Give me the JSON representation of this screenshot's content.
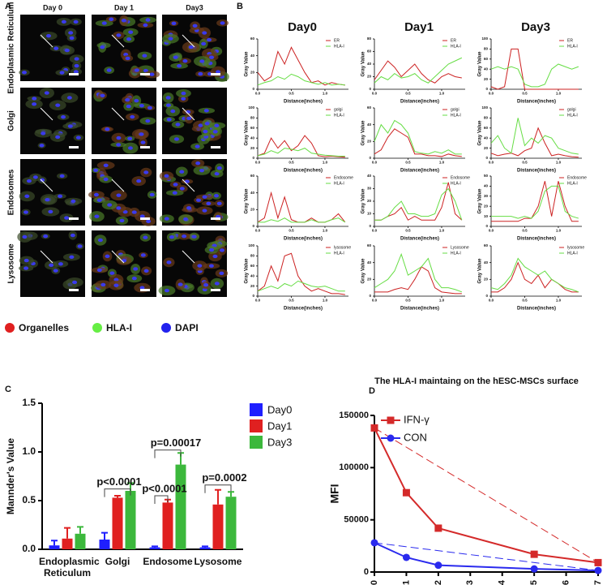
{
  "panel_labels": [
    "A",
    "B",
    "C",
    "D"
  ],
  "panel_a": {
    "columns": [
      "Day 0",
      "Day 1",
      "Day3"
    ],
    "rows": [
      "Endoplasmic Reticulum",
      "Golgi",
      "Endosomes",
      "Lysosome"
    ],
    "legend": [
      {
        "name": "Organelles",
        "color": "#e02020"
      },
      {
        "name": "HLA-I",
        "color": "#66ee44"
      },
      {
        "name": "DAPI",
        "color": "#2222ee"
      }
    ]
  },
  "panel_b": {
    "columns": [
      "Day0",
      "Day1",
      "Day3"
    ]
  },
  "chart_data": [
    {
      "type": "bar",
      "ylabel": "Mannder's Value",
      "categories": [
        "Endoplasmic Reticulum",
        "Golgi",
        "Endosome",
        "Lysosome"
      ],
      "ylim": [
        0,
        1.5
      ],
      "yticks": [
        {
          "value": 0,
          "label": "0.0"
        },
        {
          "value": 0.5,
          "label": "0.5"
        },
        {
          "value": 1,
          "label": "1.0"
        },
        {
          "value": 1.5,
          "label": "1.5"
        }
      ],
      "series": [
        {
          "name": "Day0",
          "color": "#1f1fff",
          "values": [
            0.04,
            0.1,
            0.02,
            0.02
          ],
          "errors": [
            0.05,
            0.07,
            0.01,
            0.01
          ]
        },
        {
          "name": "Day1",
          "color": "#e02020",
          "values": [
            0.11,
            0.53,
            0.48,
            0.46
          ],
          "errors": [
            0.11,
            0.02,
            0.03,
            0.15
          ]
        },
        {
          "name": "Day3",
          "color": "#3cb83c",
          "values": [
            0.16,
            0.6,
            0.87,
            0.54
          ],
          "errors": [
            0.07,
            0.08,
            0.12,
            0.05
          ]
        }
      ],
      "annotations": [
        "p<0.0001",
        "p<0.0001",
        "p=0.00017",
        "p=0.0002"
      ]
    },
    {
      "type": "line",
      "title": "The HLA-I maintaing on the hESC-MSCs surface",
      "ylabel": "MFI",
      "xlim": [
        0,
        7
      ],
      "xticks": [
        0,
        1,
        2,
        3,
        4,
        5,
        6,
        7
      ],
      "ylim": [
        0,
        150000
      ],
      "yticks": [
        0,
        50000,
        100000,
        150000
      ],
      "x": [
        0,
        1,
        2,
        5,
        7
      ],
      "series": [
        {
          "name": "IFN-γ",
          "color": "#d42a2a",
          "marker": "square",
          "values": [
            138000,
            76000,
            42000,
            17000,
            9000
          ]
        },
        {
          "name": "CON",
          "color": "#2a2aee",
          "marker": "circle",
          "values": [
            28000,
            14000,
            6500,
            3000,
            1500
          ]
        }
      ]
    },
    {
      "type": "line",
      "ylabel": "Gray Value",
      "xlabel": "Distance(inches)",
      "x": [
        0,
        0.1,
        0.2,
        0.3,
        0.4,
        0.5,
        0.6,
        0.7,
        0.8,
        0.9,
        1,
        1.1,
        1.2,
        1.3
      ],
      "xlim": [
        0,
        1.35
      ],
      "xticks": [
        {
          "value": 0,
          "label": "0.0"
        },
        {
          "value": 0.5,
          "label": "0.5"
        },
        {
          "value": 1,
          "label": "1.0"
        }
      ],
      "ylim": [
        0,
        60
      ],
      "yticks": [
        0,
        20,
        40,
        60
      ],
      "series": [
        {
          "name": "ER",
          "color": "#cc2222",
          "values": [
            20,
            10,
            15,
            45,
            30,
            50,
            35,
            20,
            8,
            10,
            5,
            8,
            6,
            5
          ]
        },
        {
          "name": "HLA-I",
          "color": "#66dd44",
          "values": [
            5,
            8,
            10,
            15,
            12,
            18,
            15,
            10,
            8,
            6,
            8,
            5,
            6,
            5
          ]
        }
      ]
    },
    {
      "type": "line",
      "ylabel": "Gray Value",
      "xlabel": "Distance(inches)",
      "x": [
        0,
        0.1,
        0.2,
        0.3,
        0.4,
        0.5,
        0.6,
        0.7,
        0.8,
        0.9,
        1,
        1.1,
        1.2,
        1.3
      ],
      "xlim": [
        0,
        1.35
      ],
      "xticks": [
        {
          "value": 0,
          "label": "0.0"
        },
        {
          "value": 0.5,
          "label": "0.5"
        },
        {
          "value": 1,
          "label": "1.0"
        }
      ],
      "ylim": [
        0,
        80
      ],
      "yticks": [
        0,
        20,
        40,
        60,
        80
      ],
      "series": [
        {
          "name": "ER",
          "color": "#cc2222",
          "values": [
            15,
            30,
            45,
            35,
            20,
            30,
            40,
            25,
            15,
            10,
            20,
            25,
            20,
            18
          ]
        },
        {
          "name": "HLA-I",
          "color": "#66dd44",
          "values": [
            10,
            20,
            15,
            25,
            18,
            20,
            25,
            15,
            10,
            20,
            30,
            40,
            45,
            50
          ]
        }
      ]
    },
    {
      "type": "line",
      "ylabel": "Gray Value",
      "xlabel": "Distance(inches)",
      "x": [
        0,
        0.1,
        0.2,
        0.3,
        0.4,
        0.5,
        0.6,
        0.7,
        0.8,
        0.9,
        1,
        1.1,
        1.2,
        1.3
      ],
      "xlim": [
        0,
        1.35
      ],
      "xticks": [
        {
          "value": 0,
          "label": "0.0"
        },
        {
          "value": 0.5,
          "label": "0.5"
        },
        {
          "value": 1,
          "label": "1.0"
        }
      ],
      "ylim": [
        0,
        100
      ],
      "yticks": [
        0,
        20,
        40,
        60,
        80,
        100
      ],
      "series": [
        {
          "name": "ER",
          "color": "#cc2222",
          "values": [
            5,
            0,
            5,
            80,
            80,
            0,
            0,
            0,
            0,
            0,
            0,
            0,
            0,
            0
          ]
        },
        {
          "name": "HLA-I",
          "color": "#66dd44",
          "values": [
            40,
            45,
            40,
            45,
            40,
            10,
            5,
            5,
            10,
            40,
            50,
            45,
            40,
            45
          ]
        }
      ]
    },
    {
      "type": "line",
      "ylabel": "Gray Value",
      "xlabel": "Distance(inches)",
      "x": [
        0,
        0.1,
        0.2,
        0.3,
        0.4,
        0.5,
        0.6,
        0.7,
        0.8,
        0.9,
        1,
        1.1,
        1.2,
        1.3
      ],
      "xlim": [
        0,
        1.35
      ],
      "xticks": [
        {
          "value": 0,
          "label": "0.0"
        },
        {
          "value": 0.5,
          "label": "0.5"
        },
        {
          "value": 1,
          "label": "1.0"
        }
      ],
      "ylim": [
        0,
        100
      ],
      "yticks": [
        0,
        20,
        40,
        60,
        80,
        100
      ],
      "series": [
        {
          "name": "golgi",
          "color": "#cc2222",
          "values": [
            5,
            10,
            40,
            20,
            35,
            15,
            25,
            45,
            30,
            5,
            3,
            4,
            3,
            2
          ]
        },
        {
          "name": "HLA-I",
          "color": "#66dd44",
          "values": [
            5,
            8,
            15,
            10,
            20,
            18,
            15,
            20,
            10,
            8,
            6,
            5,
            4,
            4
          ]
        }
      ]
    },
    {
      "type": "line",
      "ylabel": "Gray Value",
      "xlabel": "Distance(inches)",
      "x": [
        0,
        0.1,
        0.2,
        0.3,
        0.4,
        0.5,
        0.6,
        0.7,
        0.8,
        0.9,
        1,
        1.1,
        1.2,
        1.3
      ],
      "xlim": [
        0,
        1.35
      ],
      "xticks": [
        {
          "value": 0,
          "label": "0.0"
        },
        {
          "value": 0.5,
          "label": "0.5"
        },
        {
          "value": 1,
          "label": "1.0"
        }
      ],
      "ylim": [
        0,
        60
      ],
      "yticks": [
        0,
        20,
        40,
        60
      ],
      "series": [
        {
          "name": "golgi",
          "color": "#cc2222",
          "values": [
            5,
            10,
            25,
            35,
            30,
            25,
            5,
            5,
            3,
            3,
            2,
            5,
            3,
            2
          ]
        },
        {
          "name": "HLA-I",
          "color": "#66dd44",
          "values": [
            20,
            40,
            30,
            45,
            40,
            30,
            8,
            6,
            5,
            8,
            6,
            10,
            5,
            5
          ]
        }
      ]
    },
    {
      "type": "line",
      "ylabel": "Gray Value",
      "xlabel": "Distance(inches)",
      "x": [
        0,
        0.1,
        0.2,
        0.3,
        0.4,
        0.5,
        0.6,
        0.7,
        0.8,
        0.9,
        1,
        1.1,
        1.2,
        1.3
      ],
      "xlim": [
        0,
        1.35
      ],
      "xticks": [
        {
          "value": 0,
          "label": "0.0"
        },
        {
          "value": 0.5,
          "label": "0.5"
        },
        {
          "value": 1,
          "label": "1.0"
        }
      ],
      "ylim": [
        0,
        100
      ],
      "yticks": [
        0,
        20,
        40,
        60,
        80,
        100
      ],
      "series": [
        {
          "name": "golgi",
          "color": "#cc2222",
          "values": [
            10,
            5,
            8,
            10,
            5,
            15,
            20,
            60,
            30,
            5,
            8,
            5,
            3,
            2
          ]
        },
        {
          "name": "HLA-I",
          "color": "#66dd44",
          "values": [
            30,
            45,
            20,
            10,
            80,
            25,
            40,
            30,
            45,
            40,
            20,
            15,
            10,
            8
          ]
        }
      ]
    },
    {
      "type": "line",
      "ylabel": "Gray Value",
      "xlabel": "Distance(inches)",
      "x": [
        0,
        0.1,
        0.2,
        0.3,
        0.4,
        0.5,
        0.6,
        0.7,
        0.8,
        0.9,
        1,
        1.1,
        1.2,
        1.3
      ],
      "xlim": [
        0,
        1.35
      ],
      "xticks": [
        {
          "value": 0,
          "label": "0.0"
        },
        {
          "value": 0.5,
          "label": "0.5"
        },
        {
          "value": 1,
          "label": "1.0"
        }
      ],
      "ylim": [
        0,
        60
      ],
      "yticks": [
        0,
        20,
        40,
        60
      ],
      "series": [
        {
          "name": "Endosome",
          "color": "#cc2222",
          "values": [
            5,
            10,
            40,
            10,
            35,
            8,
            5,
            5,
            10,
            5,
            5,
            8,
            15,
            5
          ]
        },
        {
          "name": "HLA-I",
          "color": "#66dd44",
          "values": [
            5,
            5,
            8,
            6,
            10,
            5,
            5,
            5,
            8,
            5,
            5,
            8,
            10,
            5
          ]
        }
      ]
    },
    {
      "type": "line",
      "ylabel": "Gray Value",
      "xlabel": "Distance(inches)",
      "x": [
        0,
        0.1,
        0.2,
        0.3,
        0.4,
        0.5,
        0.6,
        0.7,
        0.8,
        0.9,
        1,
        1.1,
        1.2,
        1.3
      ],
      "xlim": [
        0,
        1.35
      ],
      "xticks": [
        {
          "value": 0,
          "label": "0.0"
        },
        {
          "value": 0.5,
          "label": "0.5"
        },
        {
          "value": 1,
          "label": "1.0"
        }
      ],
      "ylim": [
        0,
        40
      ],
      "yticks": [
        0,
        10,
        20,
        30,
        40
      ],
      "series": [
        {
          "name": "Endosome",
          "color": "#cc2222",
          "values": [
            5,
            5,
            8,
            10,
            15,
            5,
            8,
            5,
            5,
            5,
            15,
            35,
            10,
            5
          ]
        },
        {
          "name": "HLA-I",
          "color": "#66dd44",
          "values": [
            5,
            5,
            8,
            15,
            20,
            10,
            10,
            8,
            8,
            10,
            25,
            30,
            20,
            5
          ]
        }
      ]
    },
    {
      "type": "line",
      "ylabel": "Gray Value",
      "xlabel": "Distance(inches)",
      "x": [
        0,
        0.1,
        0.2,
        0.3,
        0.4,
        0.5,
        0.6,
        0.7,
        0.8,
        0.9,
        1,
        1.1,
        1.2,
        1.3
      ],
      "xlim": [
        0,
        1.35
      ],
      "xticks": [
        {
          "value": 0,
          "label": "0.0"
        },
        {
          "value": 0.5,
          "label": "0.5"
        },
        {
          "value": 1,
          "label": "1.0"
        }
      ],
      "ylim": [
        0,
        50
      ],
      "yticks": [
        0,
        10,
        20,
        30,
        40,
        50
      ],
      "series": [
        {
          "name": "Endosome",
          "color": "#cc2222",
          "values": [
            5,
            5,
            5,
            5,
            5,
            8,
            8,
            20,
            45,
            10,
            45,
            20,
            5,
            5
          ]
        },
        {
          "name": "HLA-I",
          "color": "#66dd44",
          "values": [
            10,
            10,
            10,
            10,
            8,
            10,
            8,
            15,
            35,
            40,
            40,
            15,
            10,
            8
          ]
        }
      ]
    },
    {
      "type": "line",
      "ylabel": "Gray Value",
      "xlabel": "Distance(inches)",
      "x": [
        0,
        0.1,
        0.2,
        0.3,
        0.4,
        0.5,
        0.6,
        0.7,
        0.8,
        0.9,
        1,
        1.1,
        1.2,
        1.3
      ],
      "xlim": [
        0,
        1.35
      ],
      "xticks": [
        {
          "value": 0,
          "label": "0.0"
        },
        {
          "value": 0.5,
          "label": "0.5"
        },
        {
          "value": 1,
          "label": "1.0"
        }
      ],
      "ylim": [
        0,
        100
      ],
      "yticks": [
        0,
        20,
        40,
        60,
        80,
        100
      ],
      "series": [
        {
          "name": "lysosome",
          "color": "#cc2222",
          "values": [
            10,
            20,
            60,
            30,
            80,
            85,
            40,
            20,
            10,
            15,
            10,
            5,
            5,
            3
          ]
        },
        {
          "name": "HLA-I",
          "color": "#66dd44",
          "values": [
            10,
            15,
            20,
            15,
            25,
            20,
            30,
            25,
            20,
            18,
            20,
            15,
            10,
            10
          ]
        }
      ]
    },
    {
      "type": "line",
      "ylabel": "Gray Value",
      "xlabel": "Distance(inches)",
      "x": [
        0,
        0.1,
        0.2,
        0.3,
        0.4,
        0.5,
        0.6,
        0.7,
        0.8,
        0.9,
        1,
        1.1,
        1.2,
        1.3
      ],
      "xlim": [
        0,
        1.35
      ],
      "xticks": [
        {
          "value": 0,
          "label": "0.0"
        },
        {
          "value": 0.5,
          "label": "0.5"
        },
        {
          "value": 1,
          "label": "1.0"
        }
      ],
      "ylim": [
        0,
        60
      ],
      "yticks": [
        0,
        20,
        40,
        60
      ],
      "series": [
        {
          "name": "Lysosome",
          "color": "#cc2222",
          "values": [
            5,
            5,
            5,
            8,
            10,
            8,
            20,
            35,
            30,
            10,
            5,
            4,
            3,
            3
          ]
        },
        {
          "name": "HLA-I",
          "color": "#66dd44",
          "values": [
            10,
            15,
            20,
            30,
            50,
            25,
            30,
            35,
            45,
            20,
            10,
            10,
            8,
            5
          ]
        }
      ]
    },
    {
      "type": "line",
      "ylabel": "Gray Value",
      "xlabel": "Distance(inches)",
      "x": [
        0,
        0.1,
        0.2,
        0.3,
        0.4,
        0.5,
        0.6,
        0.7,
        0.8,
        0.9,
        1,
        1.1,
        1.2,
        1.3
      ],
      "xlim": [
        0,
        1.35
      ],
      "xticks": [
        {
          "value": 0,
          "label": "0.0"
        },
        {
          "value": 0.5,
          "label": "0.5"
        },
        {
          "value": 1,
          "label": "1.0"
        }
      ],
      "ylim": [
        0,
        60
      ],
      "yticks": [
        0,
        20,
        40,
        60
      ],
      "series": [
        {
          "name": "lysosome",
          "color": "#cc2222",
          "values": [
            5,
            5,
            10,
            20,
            40,
            20,
            15,
            25,
            10,
            20,
            15,
            8,
            5,
            5
          ]
        },
        {
          "name": "HLA-I",
          "color": "#66dd44",
          "values": [
            10,
            8,
            15,
            25,
            45,
            35,
            30,
            25,
            30,
            20,
            15,
            10,
            8,
            5
          ]
        }
      ]
    }
  ]
}
